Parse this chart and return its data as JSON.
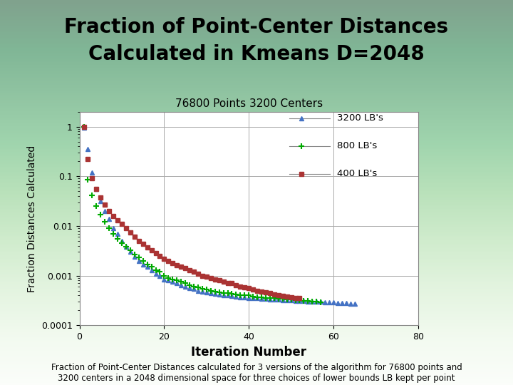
{
  "title_line1": "Fraction of Point-Center Distances",
  "title_line2": "Calculated in Kmeans D=2048",
  "subtitle": "76800 Points 3200 Centers",
  "xlabel": "Iteration Number",
  "ylabel": "Fraction Distances Calculated",
  "title_fontsize": 20,
  "subtitle_fontsize": 11,
  "xlabel_fontsize": 12,
  "ylabel_fontsize": 10,
  "xlim": [
    0,
    80
  ],
  "ylim": [
    0.0001,
    2
  ],
  "background_top": "#5bb8a0",
  "background_bottom": "#e8f4ee",
  "plot_bg": "#ffffff",
  "series_3200": {
    "label": "3200 LB's",
    "color": "#4472C4",
    "marker": "^",
    "x": [
      1,
      2,
      3,
      4,
      5,
      6,
      7,
      8,
      9,
      10,
      11,
      12,
      13,
      14,
      15,
      16,
      17,
      18,
      19,
      20,
      21,
      22,
      23,
      24,
      25,
      26,
      27,
      28,
      29,
      30,
      31,
      32,
      33,
      34,
      35,
      36,
      37,
      38,
      39,
      40,
      41,
      42,
      43,
      44,
      45,
      46,
      47,
      48,
      49,
      50,
      51,
      52,
      53,
      54,
      55,
      56,
      57,
      58,
      59,
      60,
      61,
      62,
      63,
      64,
      65
    ],
    "y": [
      0.95,
      0.35,
      0.12,
      0.055,
      0.032,
      0.02,
      0.014,
      0.009,
      0.007,
      0.005,
      0.0038,
      0.003,
      0.0024,
      0.002,
      0.0017,
      0.0015,
      0.0013,
      0.0011,
      0.001,
      0.00085,
      0.0008,
      0.00075,
      0.0007,
      0.00065,
      0.0006,
      0.00057,
      0.00054,
      0.0005,
      0.00048,
      0.00046,
      0.00044,
      0.00043,
      0.00042,
      0.00041,
      0.0004,
      0.00039,
      0.00038,
      0.00037,
      0.00037,
      0.00036,
      0.00035,
      0.00035,
      0.00034,
      0.00034,
      0.00033,
      0.00033,
      0.00033,
      0.00032,
      0.00032,
      0.00032,
      0.00031,
      0.00031,
      0.00031,
      0.0003,
      0.0003,
      0.0003,
      0.0003,
      0.00029,
      0.00029,
      0.00029,
      0.00028,
      0.00028,
      0.00028,
      0.00027,
      0.00027
    ]
  },
  "series_800": {
    "label": "800 LB's",
    "color": "#00AA00",
    "marker": "+",
    "x": [
      1,
      2,
      3,
      4,
      5,
      6,
      7,
      8,
      9,
      10,
      11,
      12,
      13,
      14,
      15,
      16,
      17,
      18,
      19,
      20,
      21,
      22,
      23,
      24,
      25,
      26,
      27,
      28,
      29,
      30,
      31,
      32,
      33,
      34,
      35,
      36,
      37,
      38,
      39,
      40,
      41,
      42,
      43,
      44,
      45,
      46,
      47,
      48,
      49,
      50,
      51,
      52,
      53,
      54,
      55,
      56,
      57
    ],
    "y": [
      1.0,
      0.085,
      0.042,
      0.025,
      0.017,
      0.012,
      0.009,
      0.007,
      0.0055,
      0.0045,
      0.0038,
      0.0032,
      0.0027,
      0.0023,
      0.002,
      0.0017,
      0.0015,
      0.0013,
      0.0012,
      0.001,
      0.0009,
      0.00085,
      0.0008,
      0.00075,
      0.0007,
      0.00065,
      0.0006,
      0.00058,
      0.00055,
      0.00052,
      0.0005,
      0.00048,
      0.00046,
      0.00045,
      0.00044,
      0.00043,
      0.00042,
      0.00041,
      0.0004,
      0.0004,
      0.00038,
      0.00037,
      0.00037,
      0.00036,
      0.00035,
      0.00035,
      0.00034,
      0.00034,
      0.00033,
      0.00033,
      0.00032,
      0.00032,
      0.00031,
      0.00031,
      0.0003,
      0.0003,
      0.00029
    ]
  },
  "series_400": {
    "label": "400 LB's",
    "color": "#AA3333",
    "marker": "s",
    "x": [
      1,
      2,
      3,
      4,
      5,
      6,
      7,
      8,
      9,
      10,
      11,
      12,
      13,
      14,
      15,
      16,
      17,
      18,
      19,
      20,
      21,
      22,
      23,
      24,
      25,
      26,
      27,
      28,
      29,
      30,
      31,
      32,
      33,
      34,
      35,
      36,
      37,
      38,
      39,
      40,
      41,
      42,
      43,
      44,
      45,
      46,
      47,
      48,
      49,
      50,
      51,
      52
    ],
    "y": [
      1.0,
      0.22,
      0.09,
      0.055,
      0.038,
      0.027,
      0.02,
      0.016,
      0.013,
      0.011,
      0.009,
      0.0075,
      0.006,
      0.005,
      0.0043,
      0.0037,
      0.0032,
      0.0028,
      0.0025,
      0.0022,
      0.002,
      0.0018,
      0.0016,
      0.0015,
      0.0014,
      0.0013,
      0.0012,
      0.0011,
      0.001,
      0.00095,
      0.0009,
      0.00085,
      0.0008,
      0.00076,
      0.00072,
      0.0007,
      0.00065,
      0.0006,
      0.00058,
      0.00056,
      0.00052,
      0.0005,
      0.00048,
      0.00046,
      0.00044,
      0.00042,
      0.0004,
      0.00039,
      0.00038,
      0.00037,
      0.00036,
      0.00035
    ]
  },
  "caption": "Fraction of Point-Center Distances calculated for 3 versions of the algorithm for 76800 points and\n3200 centers in a 2048 dimensional space for three choices of lower bounds LB kept per point",
  "caption_fontsize": 8.5
}
